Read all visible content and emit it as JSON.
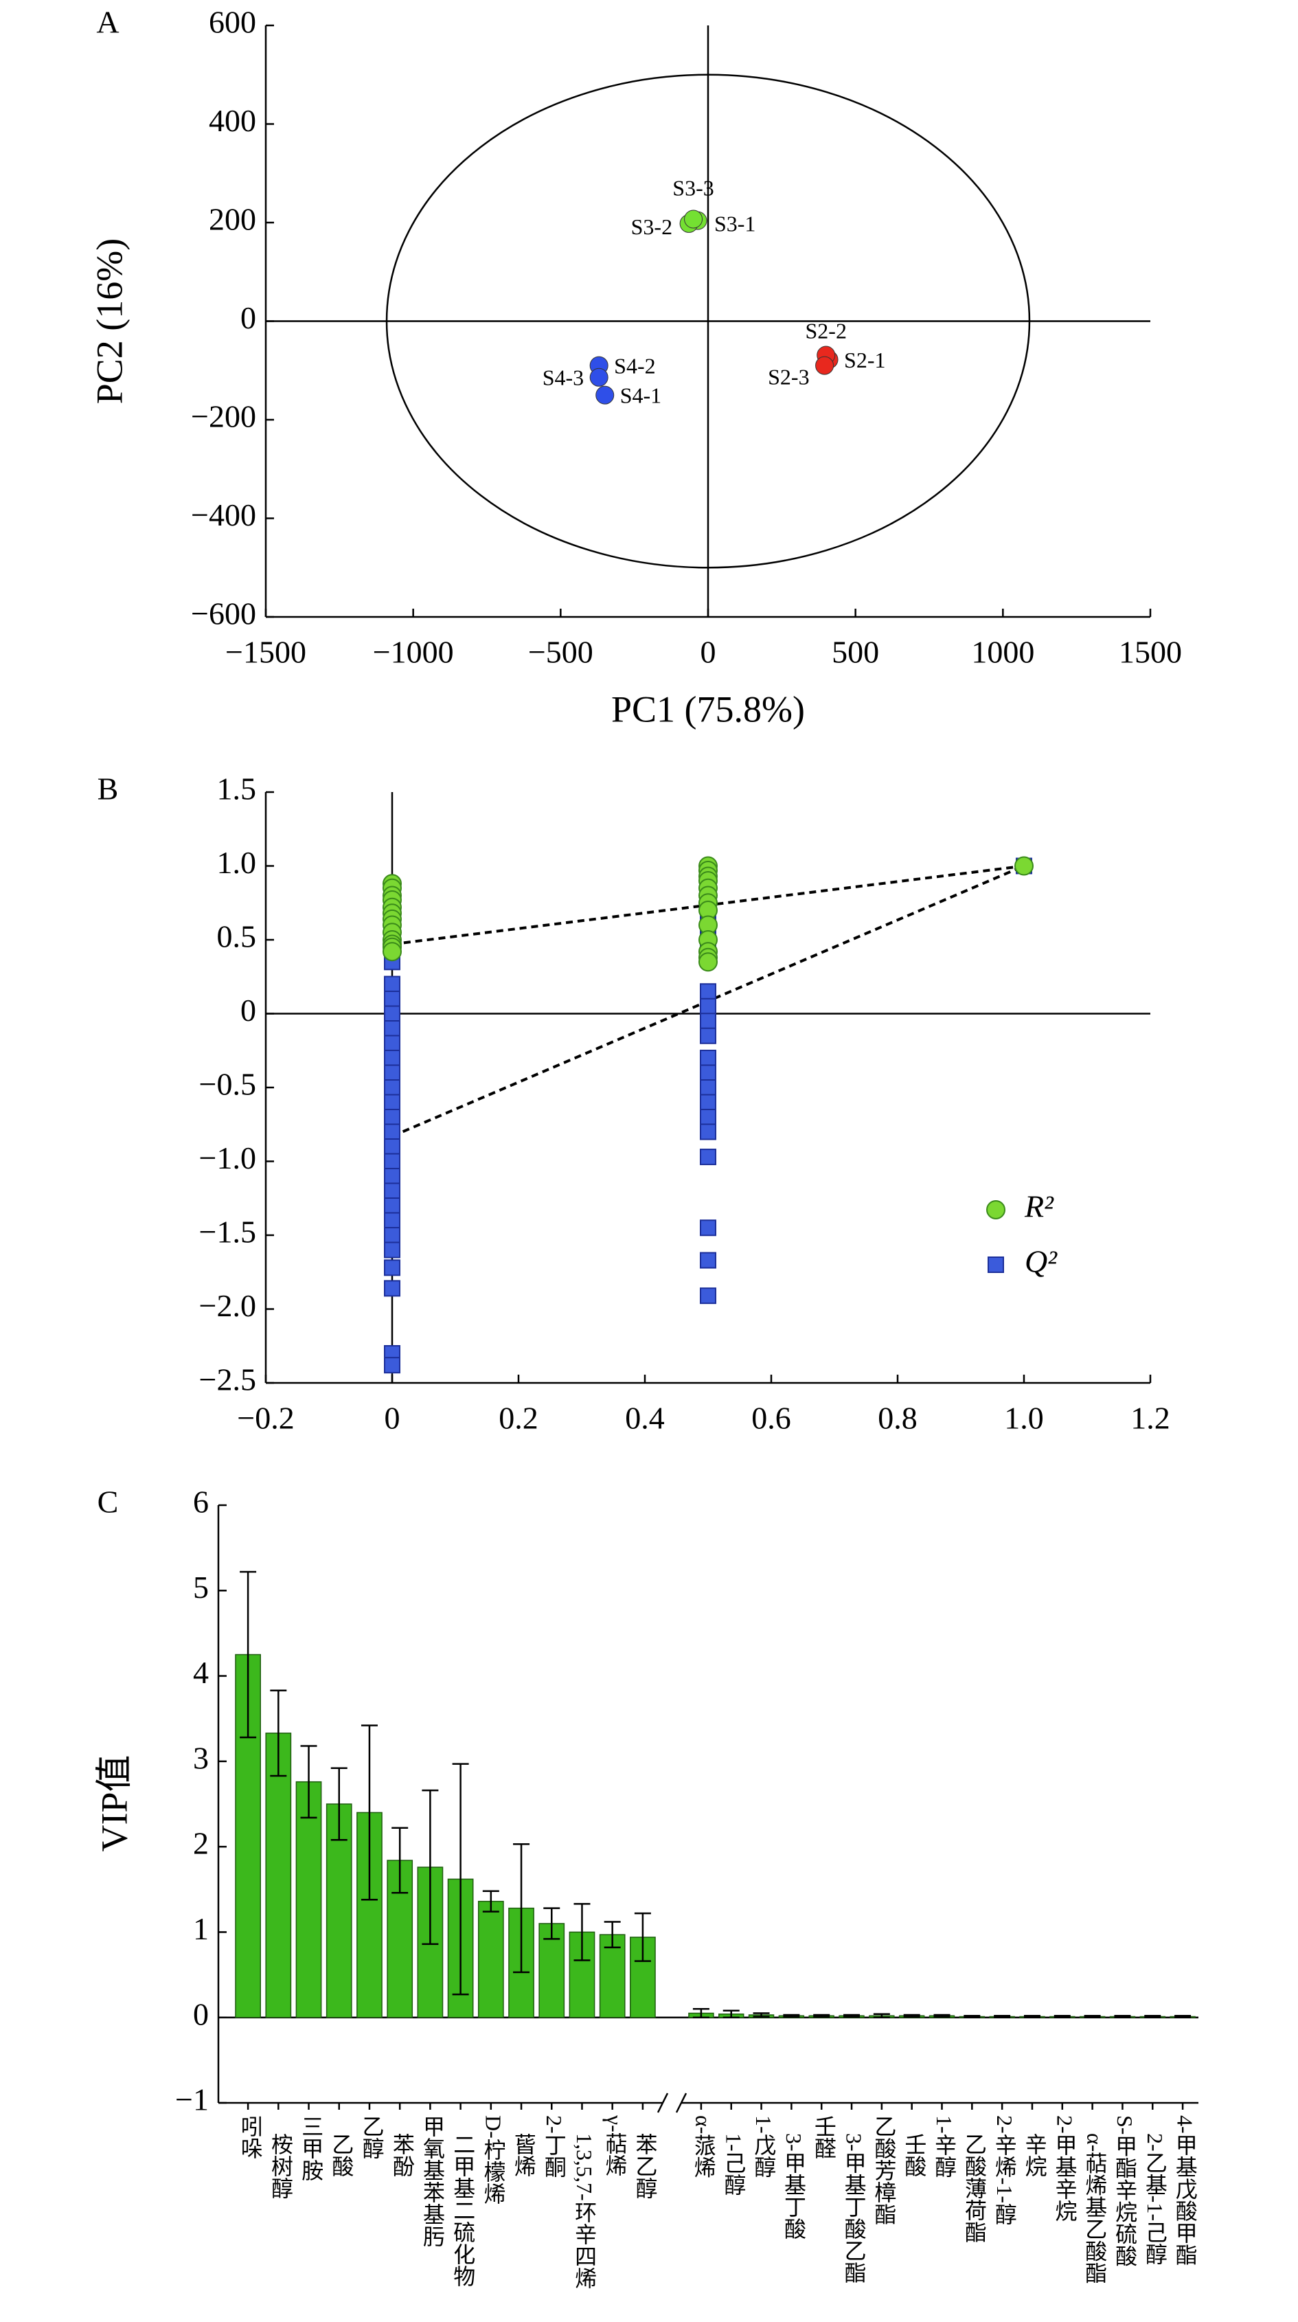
{
  "chart_data": [
    {
      "type": "scatter",
      "panel": "A",
      "x_label": "PC1 (75.8%)",
      "y_label": "PC2 (16%)",
      "xlim": [
        -1500,
        1500
      ],
      "ylim": [
        -600,
        600
      ],
      "xticks": [
        {
          "value": -1500,
          "label": "−1500"
        },
        {
          "value": -1000,
          "label": "−1000"
        },
        {
          "value": -500,
          "label": "−500"
        },
        0,
        500,
        1000,
        1500
      ],
      "yticks": [
        {
          "value": -600,
          "label": "−600"
        },
        {
          "value": -400,
          "label": "−400"
        },
        {
          "value": -200,
          "label": "−200"
        },
        0,
        200,
        400,
        600
      ],
      "ellipse_radii": [
        1090,
        500
      ],
      "series": [
        {
          "color": "#74e032",
          "labels": [
            "S3-1",
            "S3-2",
            "S3-3"
          ],
          "x": [
            -35,
            -65,
            -50
          ],
          "values": [
            204,
            198,
            207
          ]
        },
        {
          "color": "#e8281e",
          "labels": [
            "S2-1",
            "S2-2",
            "S2-3"
          ],
          "x": [
            410,
            400,
            395
          ],
          "values": [
            -78,
            -69,
            -90
          ]
        },
        {
          "color": "#2f4fe8",
          "labels": [
            "S4-1",
            "S4-2",
            "S4-3"
          ],
          "x": [
            -350,
            -370,
            -370
          ],
          "values": [
            -150,
            -90,
            -114
          ]
        }
      ]
    },
    {
      "type": "scatter",
      "panel": "B",
      "legend": "right",
      "xlim": [
        -0.2,
        1.2
      ],
      "ylim": [
        -2.5,
        1.5
      ],
      "xticks": [
        {
          "value": -0.2,
          "label": "−0.2"
        },
        0,
        0.2,
        0.4,
        0.6,
        0.8,
        {
          "value": 1,
          "label": "1.0"
        },
        1.2
      ],
      "yticks": [
        {
          "value": -2.5,
          "label": "−2.5"
        },
        {
          "value": -2,
          "label": "−2.0"
        },
        {
          "value": -1.5,
          "label": "−1.5"
        },
        {
          "value": -1,
          "label": "−1.0"
        },
        {
          "value": -0.5,
          "label": "−0.5"
        },
        0,
        0.5,
        {
          "value": 1,
          "label": "1.0"
        },
        1.5
      ],
      "series": [
        {
          "name": "Q²",
          "color": "#3b5bdb",
          "marker": "square",
          "x": [
            0,
            0,
            0,
            0,
            0,
            0,
            0,
            0,
            0,
            0,
            0,
            0,
            0,
            0,
            0,
            0,
            0,
            0,
            0,
            0,
            0,
            0,
            0,
            0,
            0.5,
            0.5,
            0.5,
            0.5,
            0.5,
            0.5,
            0.5,
            0.5,
            0.5,
            0.5,
            0.5,
            0.5,
            0.5,
            0.5,
            0.5,
            0.5,
            0.5,
            0.5,
            0.5,
            0.5,
            0.5,
            1
          ],
          "values": [
            0.35,
            0.2,
            0.1,
            0,
            -0.1,
            -0.2,
            -0.3,
            -0.4,
            -0.5,
            -0.6,
            -0.7,
            -0.8,
            -0.9,
            -1.0,
            -1.1,
            -1.2,
            -1.3,
            -1.4,
            -1.5,
            -1.6,
            -1.72,
            -1.86,
            -2.3,
            -2.38,
            0.98,
            0.9,
            0.8,
            0.7,
            0.6,
            0.5,
            0.44,
            0.15,
            0.05,
            -0.05,
            -0.15,
            -0.3,
            -0.4,
            -0.5,
            -0.6,
            -0.7,
            -0.8,
            -0.97,
            -1.45,
            -1.67,
            -1.91,
            1.0
          ],
          "fit": {
            "x": [
              0,
              1
            ],
            "values": [
              -0.83,
              1.0
            ]
          }
        },
        {
          "name": "R²",
          "color": "#7bd832",
          "marker": "circle",
          "x": [
            0,
            0,
            0,
            0,
            0,
            0,
            0,
            0,
            0,
            0,
            0,
            0,
            0,
            0.5,
            0.5,
            0.5,
            0.5,
            0.5,
            0.5,
            0.5,
            0.5,
            0.5,
            0.5,
            0.5,
            0.5,
            0.5,
            1
          ],
          "values": [
            0.88,
            0.85,
            0.8,
            0.77,
            0.72,
            0.68,
            0.64,
            0.6,
            0.55,
            0.5,
            0.47,
            0.45,
            0.42,
            1.0,
            0.97,
            0.93,
            0.9,
            0.85,
            0.8,
            0.75,
            0.7,
            0.6,
            0.5,
            0.42,
            0.38,
            0.35,
            1.0
          ],
          "fit": {
            "x": [
              0,
              1
            ],
            "values": [
              0.47,
              1.0
            ]
          }
        }
      ]
    },
    {
      "type": "bar",
      "panel": "C",
      "y_label": "VIP值",
      "color": "#3cb81c",
      "x_break": true,
      "ylim": [
        -1,
        6
      ],
      "yticks": [
        {
          "value": -1,
          "label": "−1"
        },
        0,
        1,
        2,
        3,
        4,
        5,
        6
      ],
      "groups": [
        {
          "categories": [
            "吲哚",
            "桉树醇",
            "三甲胺",
            "乙酸",
            "乙醇",
            "苯酚",
            "甲氧基苯基肟",
            "二甲基二硫化物",
            "D-柠檬烯",
            "蒈烯",
            "2-丁酮",
            "1,3,5,7-环辛四烯",
            "γ-萜烯",
            "苯乙醇"
          ],
          "values": [
            4.25,
            3.33,
            2.76,
            2.5,
            2.4,
            1.84,
            1.76,
            1.62,
            1.36,
            1.28,
            1.1,
            1.0,
            0.97,
            0.94
          ],
          "errors": [
            0.97,
            0.5,
            0.42,
            0.42,
            1.02,
            0.38,
            0.9,
            1.35,
            0.12,
            0.75,
            0.18,
            0.33,
            0.15,
            0.28
          ]
        },
        {
          "categories": [
            "α-蒎烯",
            "1-己醇",
            "1-戊醇",
            "3-甲基丁酸",
            "壬醛",
            "3-甲基丁酸乙酯",
            "乙酸芳樟酯",
            "壬酸",
            "1-辛醇",
            "乙酸薄荷酯",
            "2-辛烯-1-醇",
            "辛烷",
            "2-甲基辛烷",
            "α-萜烯基乙酸酯",
            "S-甲酯辛烷硫酸",
            "2-乙基-1-己醇",
            "4-甲基戊酸甲酯"
          ],
          "values": [
            0.05,
            0.04,
            0.03,
            0.02,
            0.02,
            0.02,
            0.02,
            0.02,
            0.02,
            0.01,
            0.01,
            0.01,
            0.01,
            0.01,
            0.01,
            0.01,
            0.01
          ],
          "errors": [
            0.05,
            0.04,
            0.02,
            0.01,
            0.01,
            0.01,
            0.02,
            0.01,
            0.01,
            0.01,
            0.01,
            0.01,
            0.01,
            0.01,
            0.01,
            0.01,
            0.01
          ]
        }
      ]
    }
  ]
}
